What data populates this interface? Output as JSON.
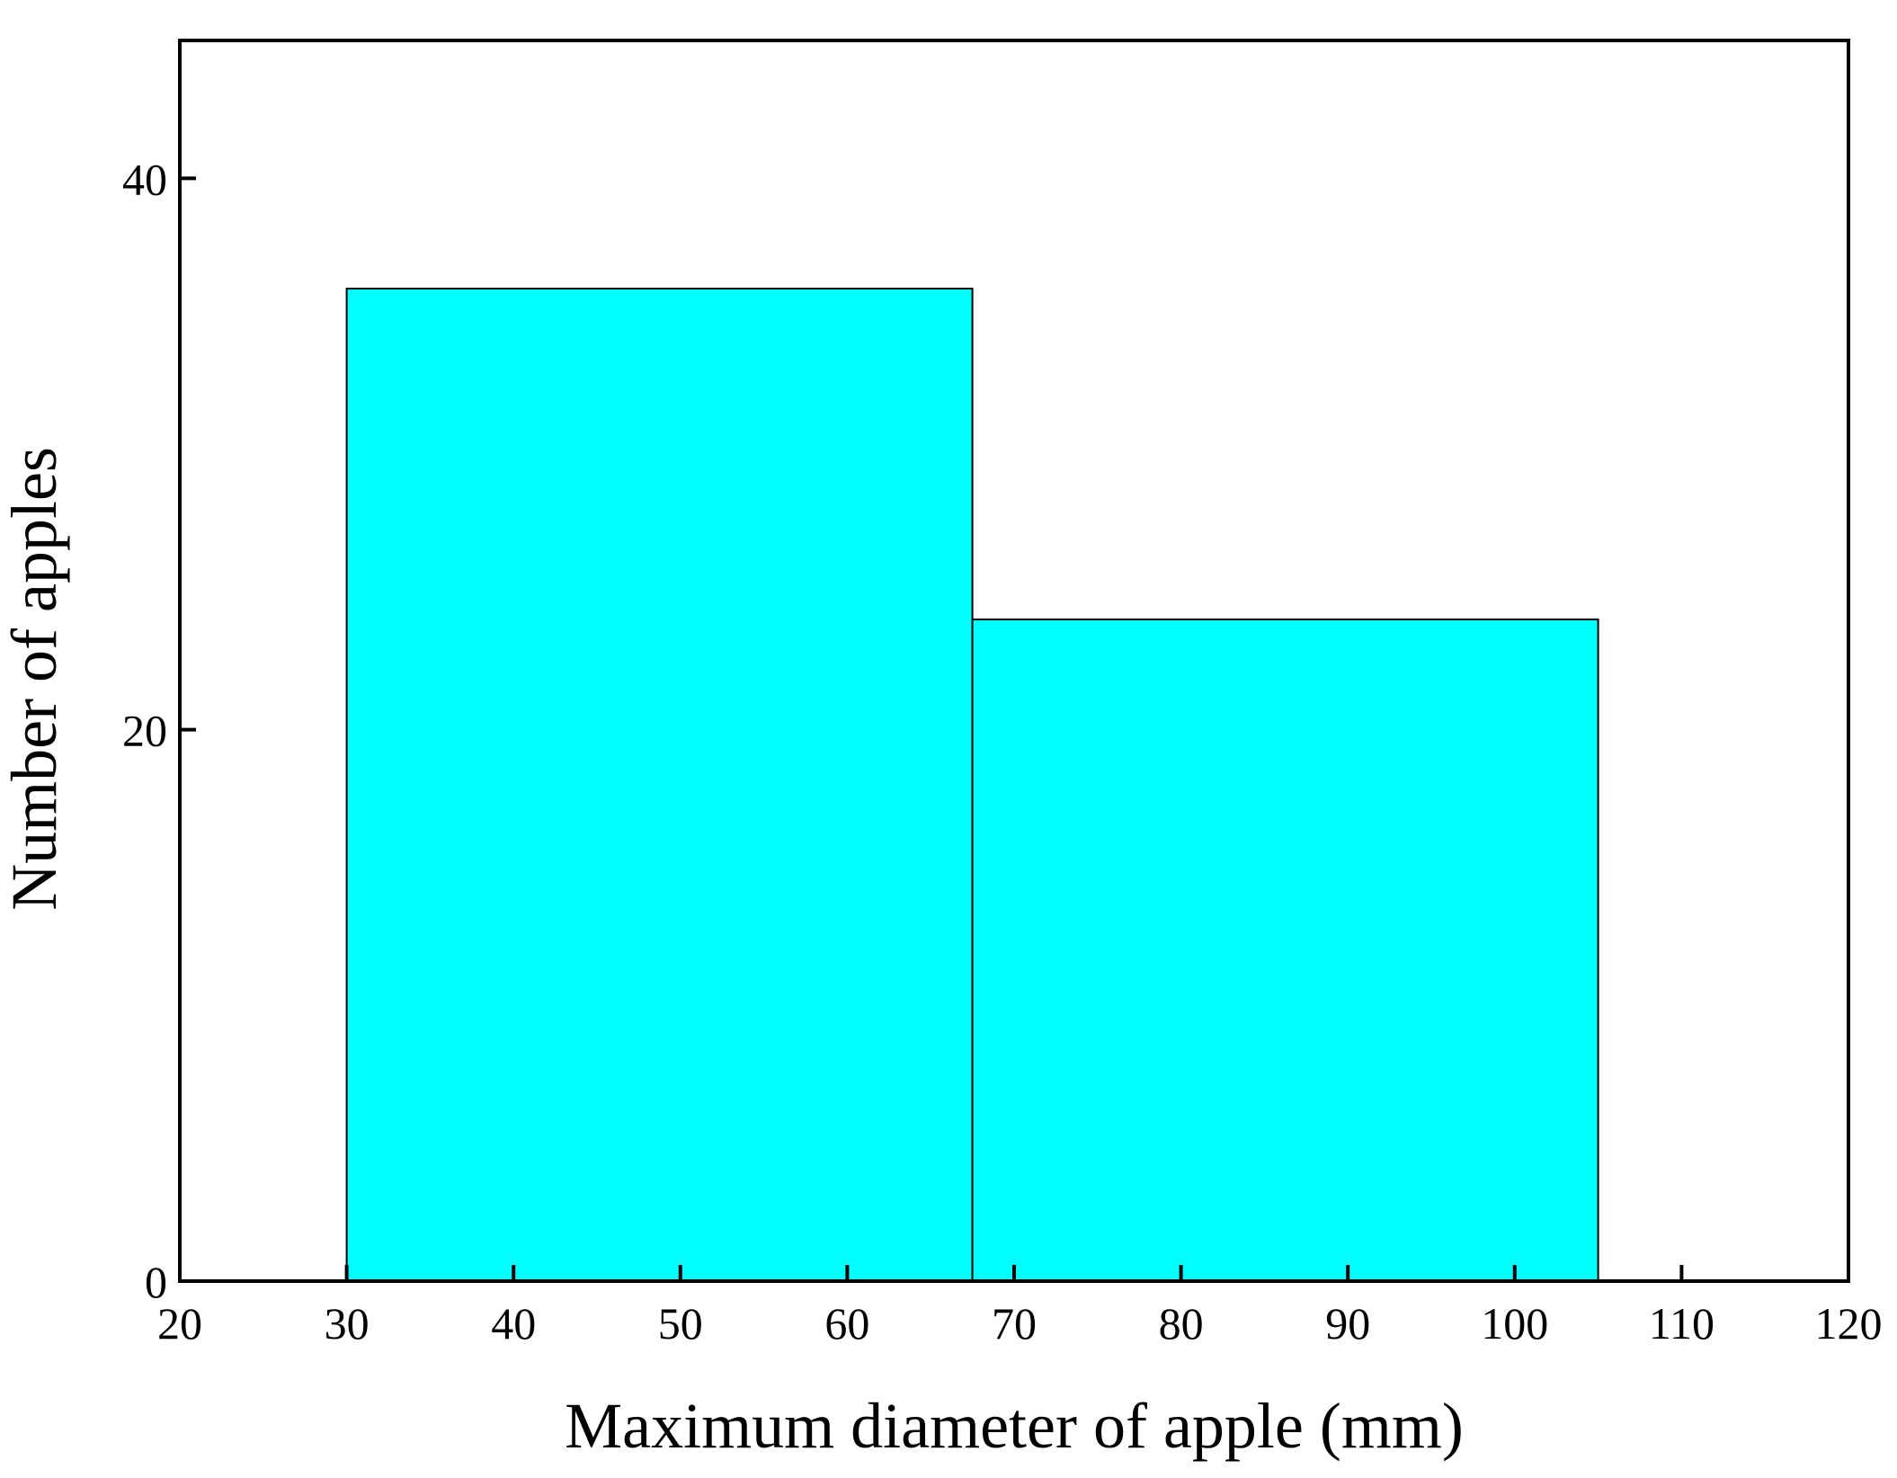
{
  "chart_data": {
    "type": "bar",
    "bins": [
      {
        "x0": 30,
        "x1": 67.5,
        "count": 36
      },
      {
        "x0": 67.5,
        "x1": 105,
        "count": 24
      }
    ],
    "xlabel": "Maximum diameter of apple (mm)",
    "ylabel": "Number of apples",
    "xlim": [
      20,
      120
    ],
    "ylim": [
      0,
      45
    ],
    "xticks": [
      "20",
      "30",
      "40",
      "50",
      "60",
      "70",
      "80",
      "90",
      "100",
      "110",
      "120"
    ],
    "yticks": [
      "0",
      "20",
      "40"
    ],
    "grid": false,
    "bar_color": "#00FFFF",
    "bar_edge_color": "#000000"
  }
}
